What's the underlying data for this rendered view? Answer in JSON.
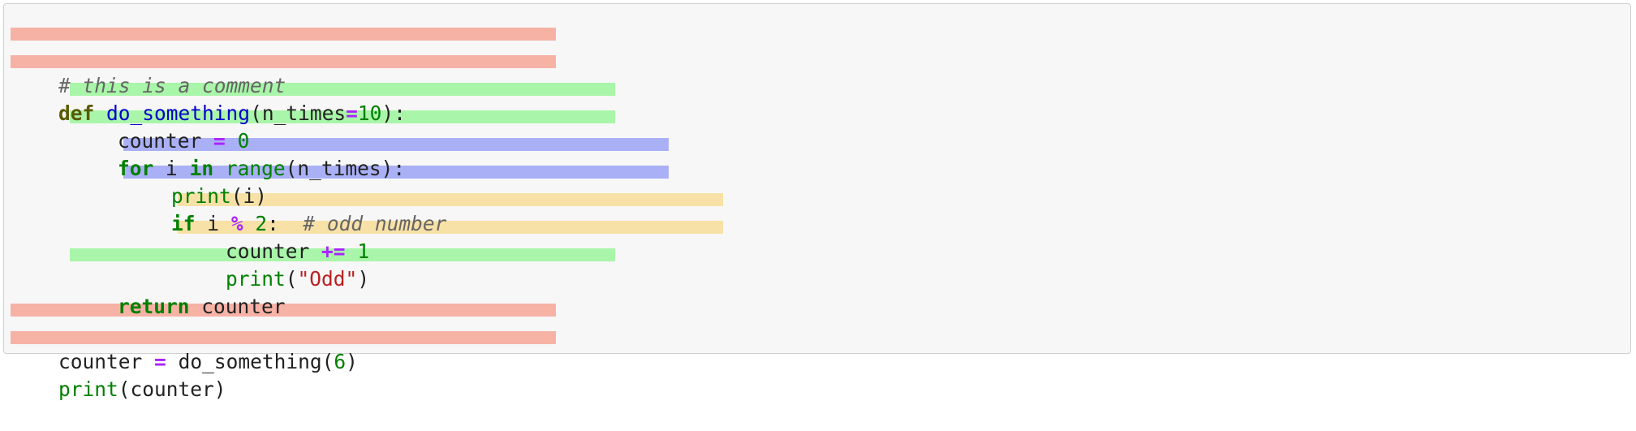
{
  "code": {
    "line1": {
      "comment": "# this is a comment"
    },
    "line2": {
      "kw": "def",
      "space": " ",
      "func": "do_something",
      "open": "(",
      "param": "n_times",
      "eq": "=",
      "num": "10",
      "close": "):"
    },
    "line3": {
      "name": "counter",
      "sp1": " ",
      "op": "=",
      "sp2": " ",
      "num": "0"
    },
    "line4": {
      "kw_for": "for",
      "sp1": " ",
      "var": "i",
      "sp2": " ",
      "kw_in": "in",
      "sp3": " ",
      "builtin": "range",
      "args": "(n_times):"
    },
    "line5": {
      "builtin": "print",
      "args": "(i)"
    },
    "line6": {
      "kw_if": "if",
      "sp1": " ",
      "var": "i",
      "sp2": " ",
      "op": "%",
      "sp3": " ",
      "num": "2",
      "colon": ":",
      "sp4": "  ",
      "comment": "# odd number"
    },
    "line7": {
      "name": "counter",
      "sp1": " ",
      "op": "+=",
      "sp2": " ",
      "num": "1"
    },
    "line8": {
      "builtin": "print",
      "open": "(",
      "str": "\"Odd\"",
      "close": ")"
    },
    "line9": {
      "kw": "return",
      "sp1": " ",
      "name": "counter"
    },
    "line11": {
      "name": "counter",
      "sp1": " ",
      "op": "=",
      "sp2": " ",
      "func": "do_something",
      "open": "(",
      "num": "6",
      "close": ")"
    },
    "line12": {
      "builtin": "print",
      "args": "(counter)"
    }
  },
  "colors": {
    "highlight_level0": "#f7b2a6",
    "highlight_level1": "#a9f5a9",
    "highlight_level2": "#aab0f5",
    "highlight_level3": "#f7e1a6",
    "panel_background": "#f7f7f7"
  }
}
